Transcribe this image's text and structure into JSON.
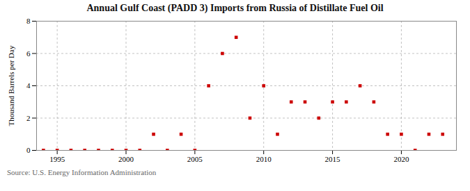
{
  "chart_data": {
    "type": "scatter",
    "title": "Annual Gulf Coast (PADD 3) Imports from Russia of Distillate Fuel Oil",
    "ylabel": "Thousand Barrels per Day",
    "source": "Source: U.S. Energy Information Administration",
    "x": [
      1994,
      1995,
      1996,
      1997,
      1998,
      1999,
      2000,
      2001,
      2002,
      2003,
      2004,
      2005,
      2006,
      2007,
      2008,
      2009,
      2010,
      2011,
      2012,
      2013,
      2014,
      2015,
      2016,
      2017,
      2018,
      2019,
      2020,
      2021,
      2022,
      2023
    ],
    "values": [
      0,
      0,
      0,
      0,
      0,
      0,
      0,
      0,
      1,
      0,
      1,
      0,
      4,
      6,
      7,
      2,
      4,
      1,
      3,
      3,
      2,
      3,
      3,
      4,
      3,
      1,
      1,
      0,
      1,
      1
    ],
    "color": "#cc0000",
    "marker": "square",
    "xlim": [
      1993.5,
      2024
    ],
    "xticks": [
      1995,
      2000,
      2005,
      2010,
      2015,
      2020
    ],
    "ylim": [
      0,
      8
    ],
    "yticks": [
      0,
      2,
      4,
      6,
      8
    ],
    "grid": true
  }
}
